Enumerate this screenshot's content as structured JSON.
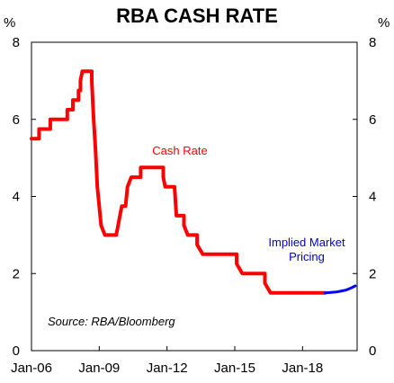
{
  "chart_data": {
    "type": "line",
    "title": "RBA CASH RATE",
    "y_unit_label": "%",
    "ylim": [
      0,
      8
    ],
    "y_ticks": [
      "0",
      "2",
      "4",
      "6",
      "8"
    ],
    "xlim": [
      "2006-01",
      "2020-06"
    ],
    "x_ticks": [
      {
        "date": "2006-01",
        "label": "Jan-06"
      },
      {
        "date": "2009-01",
        "label": "Jan-09"
      },
      {
        "date": "2012-01",
        "label": "Jan-12"
      },
      {
        "date": "2015-01",
        "label": "Jan-15"
      },
      {
        "date": "2018-01",
        "label": "Jan-18"
      }
    ],
    "grid": false,
    "annotations": {
      "cash_rate": "Cash Rate",
      "implied_line1": "Implied Market",
      "implied_line2": "Pricing",
      "source": "Source: RBA/Bloomberg"
    },
    "series": [
      {
        "name": "Cash Rate",
        "color": "#ff0000",
        "points": [
          [
            "2006-01",
            5.5
          ],
          [
            "2006-05",
            5.5
          ],
          [
            "2006-05",
            5.75
          ],
          [
            "2006-11",
            5.75
          ],
          [
            "2006-11",
            6.0
          ],
          [
            "2007-08",
            6.0
          ],
          [
            "2007-08",
            6.25
          ],
          [
            "2007-11",
            6.25
          ],
          [
            "2007-11",
            6.5
          ],
          [
            "2008-02",
            6.5
          ],
          [
            "2008-02",
            6.75
          ],
          [
            "2008-03",
            6.75
          ],
          [
            "2008-03",
            7.0
          ],
          [
            "2008-04",
            7.25
          ],
          [
            "2008-09",
            7.25
          ],
          [
            "2008-09",
            7.0
          ],
          [
            "2008-10",
            6.0
          ],
          [
            "2008-11",
            5.25
          ],
          [
            "2008-12",
            4.25
          ],
          [
            "2009-02",
            3.25
          ],
          [
            "2009-04",
            3.0
          ],
          [
            "2009-10",
            3.0
          ],
          [
            "2009-11",
            3.25
          ],
          [
            "2009-12",
            3.5
          ],
          [
            "2010-01",
            3.75
          ],
          [
            "2010-03",
            3.75
          ],
          [
            "2010-04",
            4.25
          ],
          [
            "2010-06",
            4.5
          ],
          [
            "2010-11",
            4.5
          ],
          [
            "2010-11",
            4.75
          ],
          [
            "2011-11",
            4.75
          ],
          [
            "2011-11",
            4.5
          ],
          [
            "2011-12",
            4.25
          ],
          [
            "2012-05",
            4.25
          ],
          [
            "2012-06",
            3.5
          ],
          [
            "2012-10",
            3.5
          ],
          [
            "2012-10",
            3.25
          ],
          [
            "2012-12",
            3.0
          ],
          [
            "2013-05",
            3.0
          ],
          [
            "2013-05",
            2.75
          ],
          [
            "2013-08",
            2.5
          ],
          [
            "2015-02",
            2.5
          ],
          [
            "2015-02",
            2.25
          ],
          [
            "2015-05",
            2.0
          ],
          [
            "2016-05",
            2.0
          ],
          [
            "2016-05",
            1.75
          ],
          [
            "2016-08",
            1.5
          ],
          [
            "2019-01",
            1.5
          ]
        ]
      },
      {
        "name": "Implied Market Pricing",
        "color": "#0000ff",
        "points": [
          [
            "2019-01",
            1.5
          ],
          [
            "2019-07",
            1.52
          ],
          [
            "2019-12",
            1.57
          ],
          [
            "2020-03",
            1.63
          ],
          [
            "2020-05",
            1.68
          ]
        ]
      }
    ]
  }
}
